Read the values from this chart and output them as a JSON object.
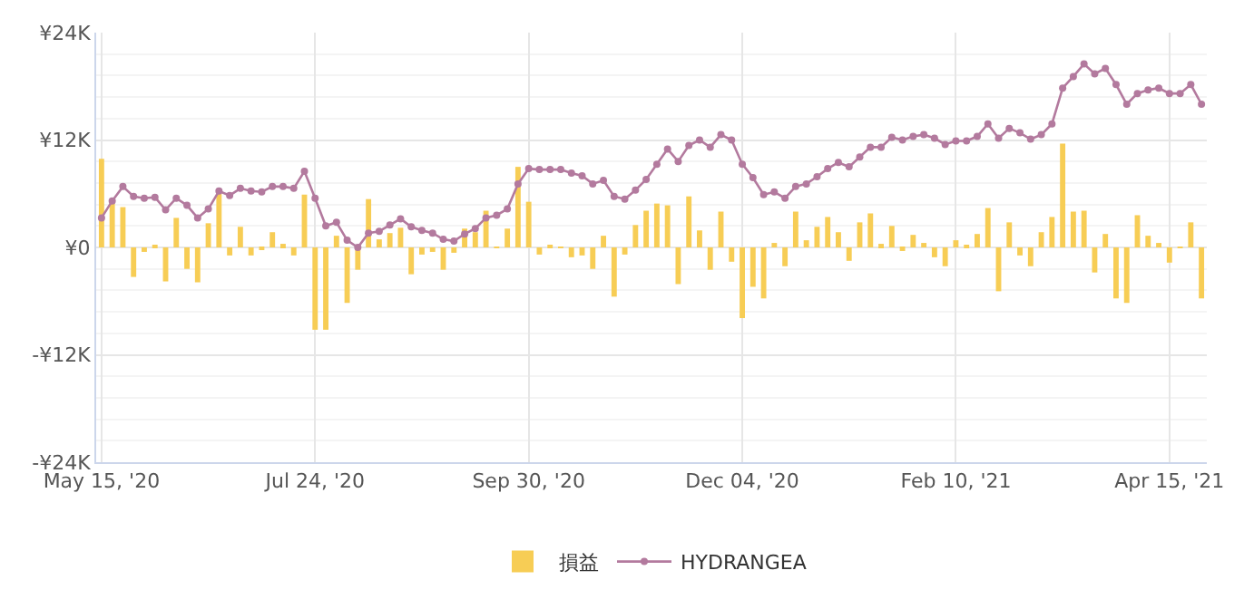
{
  "chart_data": {
    "type": "bar",
    "categories": [
      "May 15, '20",
      null,
      null,
      null,
      null,
      null,
      null,
      null,
      null,
      null,
      null,
      null,
      null,
      null,
      null,
      null,
      null,
      null,
      null,
      null,
      "Jul 24, '20",
      null,
      null,
      null,
      null,
      null,
      null,
      null,
      null,
      null,
      null,
      null,
      null,
      null,
      null,
      null,
      null,
      null,
      null,
      null,
      "Sep 30, '20",
      null,
      null,
      null,
      null,
      null,
      null,
      null,
      null,
      null,
      null,
      null,
      null,
      null,
      null,
      null,
      null,
      null,
      null,
      null,
      "Dec 04, '20",
      null,
      null,
      null,
      null,
      null,
      null,
      null,
      null,
      null,
      null,
      null,
      null,
      null,
      null,
      null,
      null,
      null,
      null,
      null,
      "Feb 10, '21",
      null,
      null,
      null,
      null,
      null,
      null,
      null,
      null,
      null,
      null,
      null,
      null,
      null,
      null,
      null,
      null,
      null,
      null,
      null,
      "Apr 15, '21",
      null,
      null,
      null
    ],
    "series": [
      {
        "name": "損益",
        "color": "#f7cd55",
        "values": [
          9.9,
          5.1,
          4.5,
          -3.3,
          -0.5,
          0.3,
          -3.8,
          3.3,
          -2.4,
          -3.9,
          2.7,
          6.3,
          -0.9,
          2.3,
          -0.9,
          -0.2,
          1.7,
          0.4,
          -0.9,
          5.9,
          -9.2,
          -9.2,
          1.3,
          -6.2,
          -2.5,
          5.4,
          0.9,
          1.6,
          2.2,
          -3.0,
          -0.8,
          -0.5,
          -2.5,
          -0.6,
          2.1,
          1.7,
          4.1,
          0.1,
          2.1,
          9.0,
          5.1,
          -0.8,
          0.3,
          -0.1,
          -1.1,
          -0.9,
          -2.4,
          1.3,
          -5.5,
          -0.8,
          2.5,
          4.1,
          4.9,
          4.7,
          -4.1,
          5.7,
          1.9,
          -2.5,
          4.0,
          -1.6,
          -7.9,
          -4.4,
          -5.7,
          0.5,
          -2.1,
          4.0,
          0.8,
          2.3,
          3.4,
          1.7,
          -1.5,
          2.8,
          3.8,
          0.4,
          2.4,
          -0.4,
          1.4,
          0.5,
          -1.1,
          -2.1,
          0.8,
          0.3,
          1.5,
          4.4,
          -4.9,
          2.8,
          -0.9,
          -2.1,
          1.7,
          3.4,
          11.6,
          4.0,
          4.1,
          -2.8,
          1.5,
          -5.7,
          -6.2,
          3.6,
          1.3,
          0.5,
          -1.7,
          0.1,
          2.8,
          -5.7
        ]
      },
      {
        "name": "HYDRANGEA",
        "type": "line",
        "color": "#b37a9e",
        "marker": "circle",
        "line_style": "solid",
        "values": [
          3.3,
          5.2,
          6.8,
          5.7,
          5.5,
          5.6,
          4.2,
          5.5,
          4.7,
          3.3,
          4.3,
          6.3,
          5.8,
          6.6,
          6.3,
          6.2,
          6.8,
          6.8,
          6.6,
          8.5,
          5.5,
          2.4,
          2.8,
          0.8,
          0.0,
          1.6,
          1.8,
          2.5,
          3.2,
          2.3,
          1.9,
          1.6,
          0.9,
          0.7,
          1.5,
          2.1,
          3.3,
          3.6,
          4.3,
          7.1,
          8.8,
          8.7,
          8.7,
          8.7,
          8.3,
          8.0,
          7.1,
          7.5,
          5.7,
          5.4,
          6.4,
          7.6,
          9.3,
          11.0,
          9.6,
          11.4,
          12.0,
          11.2,
          12.6,
          12.0,
          9.3,
          7.8,
          5.9,
          6.2,
          5.5,
          6.8,
          7.1,
          7.9,
          8.8,
          9.5,
          9.0,
          10.1,
          11.2,
          11.2,
          12.3,
          12.0,
          12.4,
          12.6,
          12.2,
          11.5,
          11.9,
          11.9,
          12.4,
          13.8,
          12.2,
          13.3,
          12.8,
          12.1,
          12.6,
          13.8,
          17.8,
          19.1,
          20.5,
          19.4,
          20.0,
          18.2,
          16.0,
          17.2,
          17.6,
          17.8,
          17.2,
          17.2,
          18.2,
          16.0
        ]
      }
    ],
    "ylim": [
      -24,
      24
    ],
    "yticks": [
      {
        "value": -24,
        "label": "-¥24K"
      },
      {
        "value": -12,
        "label": "-¥12K"
      },
      {
        "value": 0,
        "label": "¥0"
      },
      {
        "value": 12,
        "label": "¥12K"
      },
      {
        "value": 24,
        "label": "¥24K"
      }
    ],
    "grid": true,
    "legend": "bottom"
  }
}
